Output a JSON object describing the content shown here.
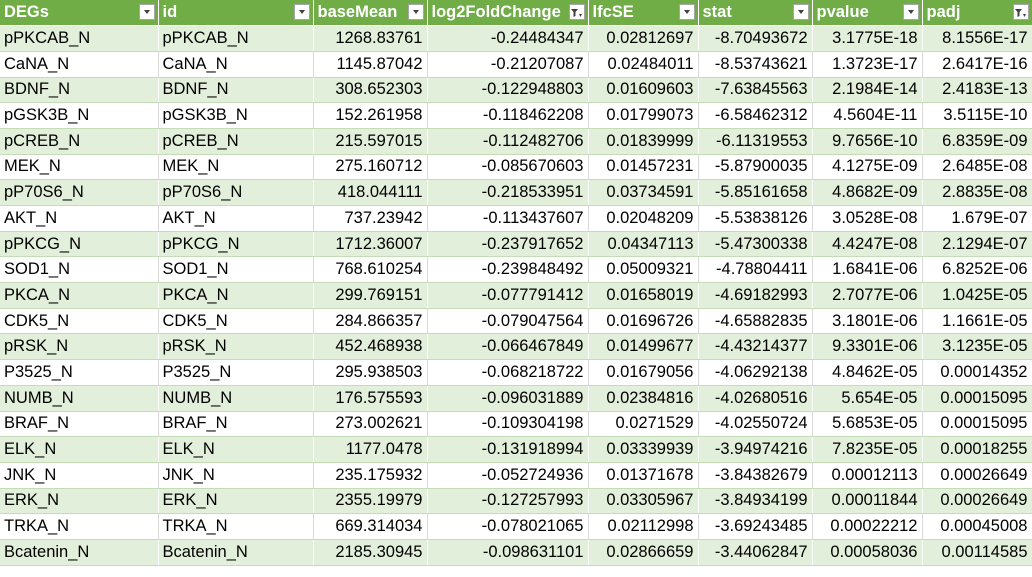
{
  "table": {
    "columns": [
      {
        "label": "DEGs",
        "filter": "dropdown"
      },
      {
        "label": "id",
        "filter": "dropdown"
      },
      {
        "label": "baseMean",
        "filter": "dropdown"
      },
      {
        "label": "log2FoldChange",
        "filter": "filtered"
      },
      {
        "label": "lfcSE",
        "filter": "dropdown"
      },
      {
        "label": "stat",
        "filter": "dropdown"
      },
      {
        "label": "pvalue",
        "filter": "dropdown"
      },
      {
        "label": "padj",
        "filter": "filtered"
      }
    ],
    "rows": [
      [
        "pPKCAB_N",
        "pPKCAB_N",
        "1268.83761",
        "-0.24484347",
        "0.02812697",
        "-8.70493672",
        "3.1775E-18",
        "8.1556E-17"
      ],
      [
        "CaNA_N",
        "CaNA_N",
        "1145.87042",
        "-0.21207087",
        "0.02484011",
        "-8.53743621",
        "1.3723E-17",
        "2.6417E-16"
      ],
      [
        "BDNF_N",
        "BDNF_N",
        "308.652303",
        "-0.122948803",
        "0.01609603",
        "-7.63845563",
        "2.1984E-14",
        "2.4183E-13"
      ],
      [
        "pGSK3B_N",
        "pGSK3B_N",
        "152.261958",
        "-0.118462208",
        "0.01799073",
        "-6.58462312",
        "4.5604E-11",
        "3.5115E-10"
      ],
      [
        "pCREB_N",
        "pCREB_N",
        "215.597015",
        "-0.112482706",
        "0.01839999",
        "-6.11319553",
        "9.7656E-10",
        "6.8359E-09"
      ],
      [
        "MEK_N",
        "MEK_N",
        "275.160712",
        "-0.085670603",
        "0.01457231",
        "-5.87900035",
        "4.1275E-09",
        "2.6485E-08"
      ],
      [
        "pP70S6_N",
        "pP70S6_N",
        "418.044111",
        "-0.218533951",
        "0.03734591",
        "-5.85161658",
        "4.8682E-09",
        "2.8835E-08"
      ],
      [
        "AKT_N",
        "AKT_N",
        "737.23942",
        "-0.113437607",
        "0.02048209",
        "-5.53838126",
        "3.0528E-08",
        "1.679E-07"
      ],
      [
        "pPKCG_N",
        "pPKCG_N",
        "1712.36007",
        "-0.237917652",
        "0.04347113",
        "-5.47300338",
        "4.4247E-08",
        "2.1294E-07"
      ],
      [
        "SOD1_N",
        "SOD1_N",
        "768.610254",
        "-0.239848492",
        "0.05009321",
        "-4.78804411",
        "1.6841E-06",
        "6.8252E-06"
      ],
      [
        "PKCA_N",
        "PKCA_N",
        "299.769151",
        "-0.077791412",
        "0.01658019",
        "-4.69182993",
        "2.7077E-06",
        "1.0425E-05"
      ],
      [
        "CDK5_N",
        "CDK5_N",
        "284.866357",
        "-0.079047564",
        "0.01696726",
        "-4.65882835",
        "3.1801E-06",
        "1.1661E-05"
      ],
      [
        "pRSK_N",
        "pRSK_N",
        "452.468938",
        "-0.066467849",
        "0.01499677",
        "-4.43214377",
        "9.3301E-06",
        "3.1235E-05"
      ],
      [
        "P3525_N",
        "P3525_N",
        "295.938503",
        "-0.068218722",
        "0.01679056",
        "-4.06292138",
        "4.8462E-05",
        "0.00014352"
      ],
      [
        "NUMB_N",
        "NUMB_N",
        "176.575593",
        "-0.096031889",
        "0.02384816",
        "-4.02680516",
        "5.654E-05",
        "0.00015095"
      ],
      [
        "BRAF_N",
        "BRAF_N",
        "273.002621",
        "-0.109304198",
        "0.0271529",
        "-4.02550724",
        "5.6853E-05",
        "0.00015095"
      ],
      [
        "ELK_N",
        "ELK_N",
        "1177.0478",
        "-0.131918994",
        "0.03339939",
        "-3.94974216",
        "7.8235E-05",
        "0.00018255"
      ],
      [
        "JNK_N",
        "JNK_N",
        "235.175932",
        "-0.052724936",
        "0.01371678",
        "-3.84382679",
        "0.00012113",
        "0.00026649"
      ],
      [
        "ERK_N",
        "ERK_N",
        "2355.19979",
        "-0.127257993",
        "0.03305967",
        "-3.84934199",
        "0.00011844",
        "0.00026649"
      ],
      [
        "TRKA_N",
        "TRKA_N",
        "669.314034",
        "-0.078021065",
        "0.02112998",
        "-3.69243485",
        "0.00022212",
        "0.00045008"
      ],
      [
        "Bcatenin_N",
        "Bcatenin_N",
        "2185.30945",
        "-0.098631101",
        "0.02866659",
        "-3.44062847",
        "0.00058036",
        "0.00114585"
      ]
    ]
  },
  "colors": {
    "header_bg": "#70ad47",
    "band_bg": "#e2efda",
    "plain_bg": "#ffffff"
  }
}
